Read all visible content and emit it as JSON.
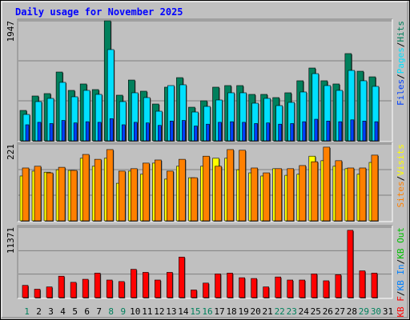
{
  "chart_data": [
    {
      "type": "bar",
      "title": "Daily usage for November 2025",
      "categories": [
        "1",
        "2",
        "3",
        "4",
        "5",
        "6",
        "7",
        "8",
        "9",
        "10",
        "11",
        "12",
        "13",
        "14",
        "15",
        "16",
        "17",
        "18",
        "19",
        "20",
        "21",
        "22",
        "23",
        "24",
        "25",
        "26",
        "27",
        "28",
        "29",
        "30",
        "31"
      ],
      "category_colors": [
        "#00805c",
        "#000000",
        "#000000",
        "#000000",
        "#000000",
        "#000000",
        "#000000",
        "#00805c",
        "#00805c",
        "#000000",
        "#000000",
        "#000000",
        "#000000",
        "#000000",
        "#00805c",
        "#00805c",
        "#000000",
        "#000000",
        "#000000",
        "#000000",
        "#000000",
        "#00805c",
        "#00805c",
        "#000000",
        "#000000",
        "#000000",
        "#000000",
        "#000000",
        "#00805c",
        "#00805c",
        "#000000"
      ],
      "legend_separator": "/",
      "ylim": [
        0,
        1947
      ],
      "yticks": [
        1947
      ],
      "series": [
        {
          "name": "Hits",
          "color": "#00805c",
          "values": [
            493,
            727,
            766,
            1116,
            818,
            922,
            831,
            1947,
            740,
            986,
            805,
            597,
            870,
            1025,
            545,
            649,
            870,
            896,
            896,
            753,
            753,
            701,
            779,
            974,
            1181,
            974,
            922,
            1415,
            1129,
            1038,
            null
          ]
        },
        {
          "name": "Pages",
          "color": "#00e0ff",
          "values": [
            428,
            636,
            688,
            948,
            714,
            818,
            753,
            1480,
            636,
            779,
            701,
            480,
            896,
            909,
            467,
            558,
            662,
            779,
            779,
            610,
            688,
            571,
            623,
            792,
            1090,
            896,
            818,
            1142,
            974,
            883,
            null
          ]
        },
        {
          "name": "Files",
          "color": "#0040ff",
          "values": [
            260,
            300,
            280,
            330,
            290,
            310,
            300,
            360,
            260,
            300,
            290,
            250,
            320,
            330,
            240,
            270,
            300,
            310,
            300,
            280,
            290,
            270,
            280,
            310,
            350,
            320,
            310,
            340,
            320,
            310,
            null
          ]
        }
      ]
    },
    {
      "type": "bar",
      "ylim": [
        0,
        221
      ],
      "yticks": [
        221
      ],
      "series": [
        {
          "name": "Visits",
          "color": "#ffff00",
          "values": [
            129,
            143,
            140,
            147,
            145,
            180,
            157,
            180,
            108,
            143,
            134,
            166,
            120,
            157,
            124,
            157,
            180,
            180,
            147,
            138,
            129,
            150,
            131,
            134,
            186,
            173,
            157,
            150,
            134,
            168,
            null
          ]
        },
        {
          "name": "Sites",
          "color": "#ff8000",
          "values": [
            152,
            157,
            138,
            154,
            145,
            191,
            177,
            205,
            143,
            150,
            166,
            175,
            143,
            177,
            124,
            186,
            157,
            205,
            203,
            152,
            138,
            150,
            150,
            159,
            170,
            212,
            173,
            152,
            152,
            189,
            null
          ]
        }
      ]
    },
    {
      "type": "bar",
      "ylim": [
        0,
        11371
      ],
      "yticks": [
        11371
      ],
      "series": [
        {
          "name": "KB F",
          "color": "#ff0000",
          "values": [
            1978,
            1360,
            1730,
            3461,
            2472,
            2966,
            3955,
            2843,
            2596,
            4573,
            4079,
            2843,
            4079,
            6551,
            1236,
            2348,
            3832,
            3955,
            3214,
            3090,
            1730,
            3337,
            2843,
            2843,
            3832,
            2719,
            3708,
            10877,
            4326,
            3955,
            null
          ]
        }
      ],
      "legend_only": [
        {
          "name": "KB In",
          "color": "#0080ff"
        },
        {
          "name": "KB Out",
          "color": "#00c000"
        }
      ]
    }
  ]
}
